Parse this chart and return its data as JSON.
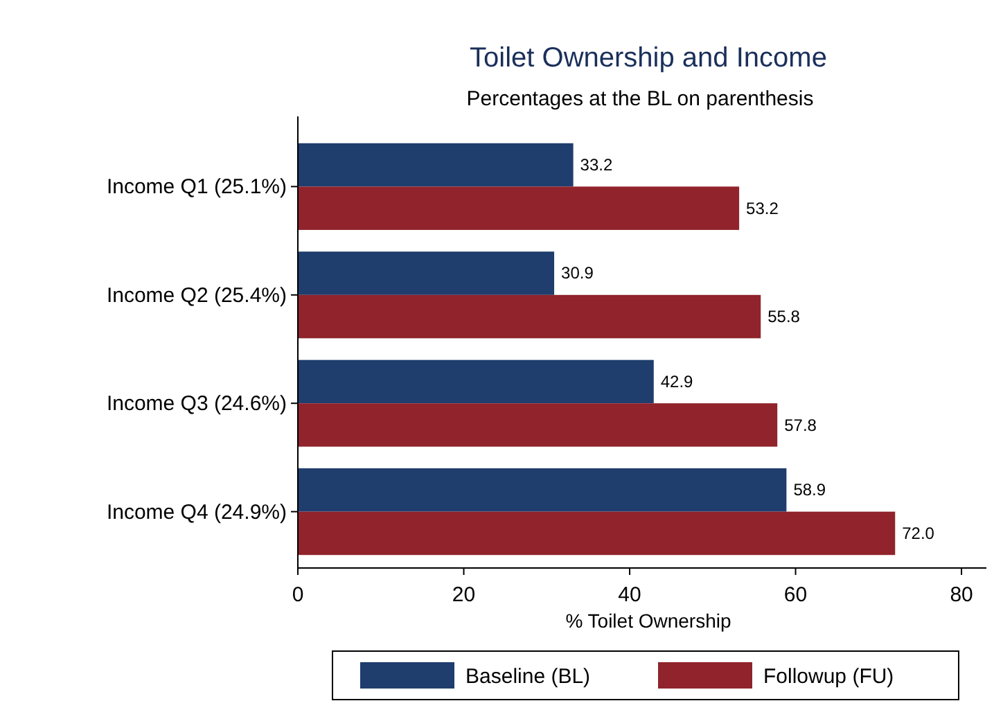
{
  "chart_data": {
    "type": "bar",
    "orientation": "horizontal",
    "title": "Toilet Ownership and Income",
    "subtitle": "Percentages at the BL on parenthesis",
    "xlabel": "% Toilet Ownership",
    "categories": [
      "Income Q1 (25.1%)",
      "Income Q2 (25.4%)",
      "Income Q3 (24.6%)",
      "Income Q4 (24.9%)"
    ],
    "series": [
      {
        "name": "Baseline (BL)",
        "color": "#1f3d6d",
        "values": [
          33.2,
          30.9,
          42.9,
          58.9
        ],
        "value_labels": [
          "33.2",
          "30.9",
          "42.9",
          "58.9"
        ]
      },
      {
        "name": "Followup (FU)",
        "color": "#90232b",
        "values": [
          53.2,
          55.8,
          57.8,
          72.0
        ],
        "value_labels": [
          "53.2",
          "55.8",
          "57.8",
          "72.0"
        ]
      }
    ],
    "xlim": [
      0,
      83
    ],
    "xticks": [
      0,
      20,
      40,
      60,
      80
    ],
    "grid": false,
    "legend": "bottom"
  }
}
